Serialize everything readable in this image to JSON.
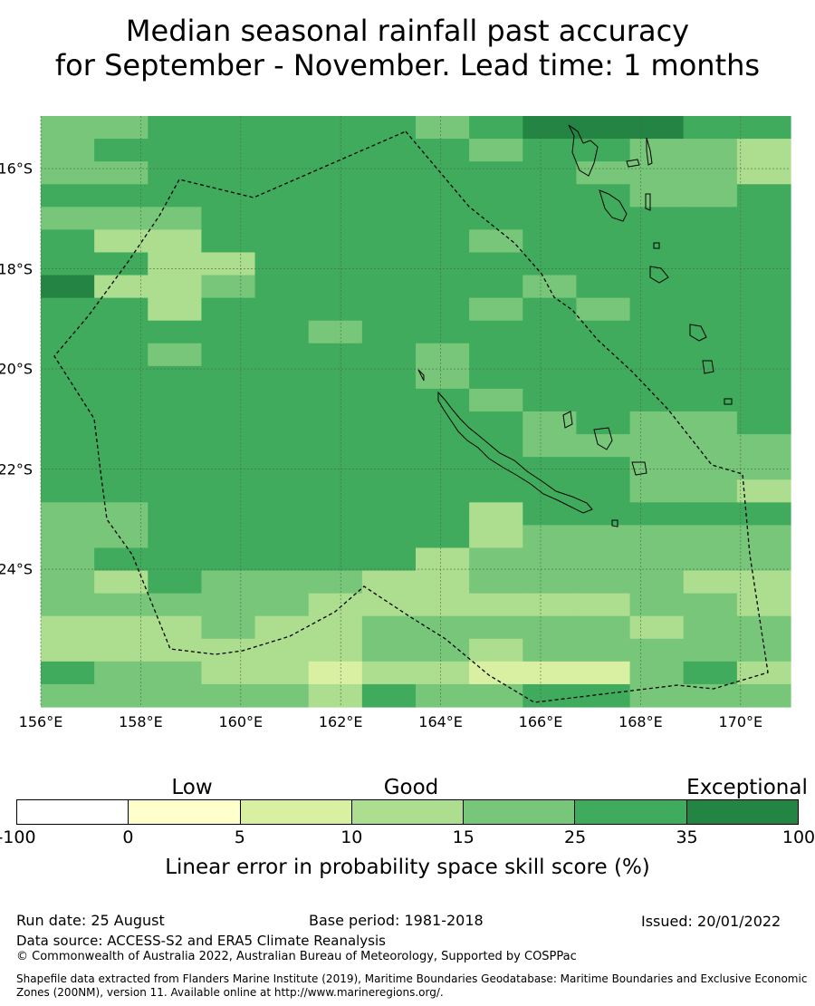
{
  "title_line1": "Median seasonal rainfall past accuracy",
  "title_line2": "for September - November. Lead time: 1 months",
  "map": {
    "lon_range": [
      156,
      171
    ],
    "lat_range": [
      -26.75,
      -14.95
    ],
    "lon_labels": [
      "156°E",
      "158°E",
      "160°E",
      "162°E",
      "164°E",
      "166°E",
      "168°E",
      "170°E"
    ],
    "lon_values": [
      156,
      158,
      160,
      162,
      164,
      166,
      168,
      170
    ],
    "lat_labels": [
      "16°S",
      "18°S",
      "20°S",
      "22°S",
      "24°S"
    ],
    "lat_values": [
      -16,
      -18,
      -20,
      -22,
      -24
    ],
    "grid_rows": [
      "44555554566655",
      "45555555455443",
      "44555555554443",
      "55555555555445",
      "44455555555555",
      "53355555455555",
      "55335555555555",
      "63345555545555",
      "55355555454555",
      "55555455555555",
      "55455554555555",
      "55555554555555",
      "55555555455555",
      "55555555545445",
      "55555555544444",
      "55555555555444",
      "55555555555443",
      "44555555355555",
      "44555555344444",
      "45555553444444",
      "43544433444433",
      "44444333333443",
      "33343344444344",
      "33333344344444",
      "54433233222453",
      "44444354455444"
    ],
    "grid_note_cols": 14
  },
  "colorbar": {
    "low_label": "Low",
    "good_label": "Good",
    "exceptional_label": "Exceptional",
    "ticks": [
      "-100",
      "0",
      "5",
      "10",
      "15",
      "25",
      "35",
      "100"
    ],
    "colors": [
      "#ffffff",
      "#ffffcc",
      "#d9f0a3",
      "#addd8e",
      "#78c679",
      "#41ab5d",
      "#238443"
    ],
    "label": "Linear error in probability space skill score (%)"
  },
  "footer": {
    "run_date": "Run date: 25 August",
    "base_period": "Base period: 1981-2018",
    "issued": "Issued: 20/01/2022",
    "data_source": "Data source: ACCESS-S2 and ERA5 Climate Reanalysis",
    "copyright": "© Commonwealth of Australia 2022, Australian Bureau of Meteorology, Supported by COSPPac",
    "shapefile_line1": "Shapefile data extracted from Flanders Marine Institute (2019), Maritime Boundaries Geodatabase: Maritime Boundaries and Exclusive Economic",
    "shapefile_line2": "Zones (200NM), version 11. Available online at http://www.marineregions.org/."
  }
}
